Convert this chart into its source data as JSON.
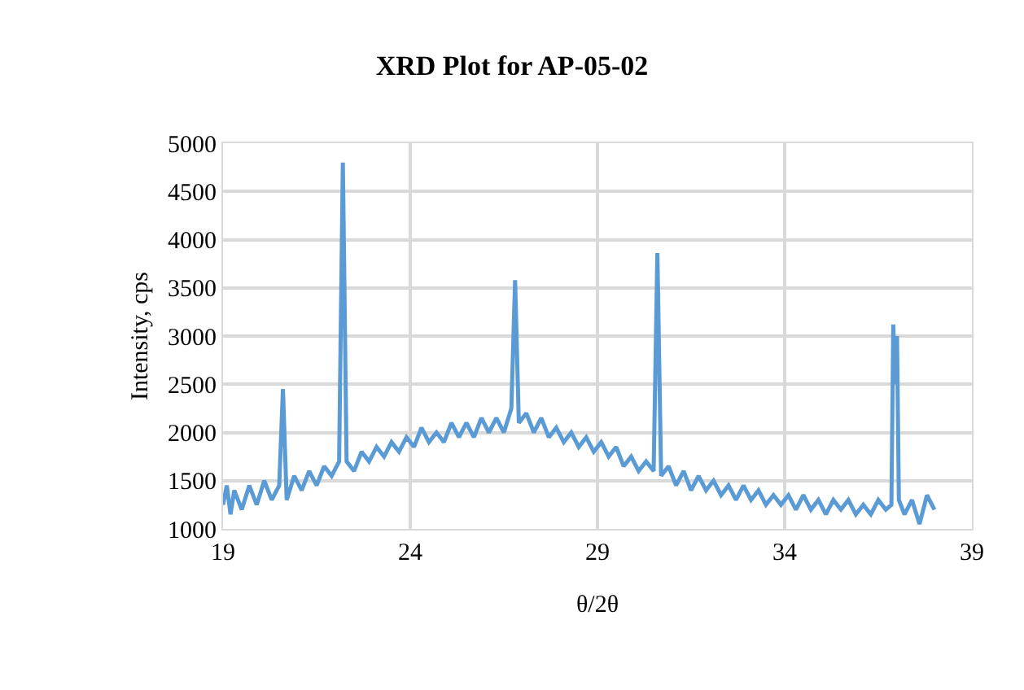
{
  "chart_data": {
    "type": "line",
    "title": "XRD Plot for AP-05-02",
    "xlabel": "θ/2θ",
    "ylabel": "Intensity, cps",
    "x": [
      19.0,
      19.1,
      19.2,
      19.3,
      19.5,
      19.7,
      19.9,
      20.1,
      20.3,
      20.5,
      20.6,
      20.7,
      20.9,
      21.1,
      21.3,
      21.5,
      21.7,
      21.9,
      22.1,
      22.2,
      22.3,
      22.5,
      22.7,
      22.9,
      23.1,
      23.3,
      23.5,
      23.7,
      23.9,
      24.1,
      24.3,
      24.5,
      24.7,
      24.9,
      25.1,
      25.3,
      25.5,
      25.7,
      25.9,
      26.1,
      26.3,
      26.5,
      26.7,
      26.8,
      26.9,
      27.1,
      27.3,
      27.5,
      27.7,
      27.9,
      28.1,
      28.3,
      28.5,
      28.7,
      28.9,
      29.1,
      29.3,
      29.5,
      29.7,
      29.9,
      30.1,
      30.3,
      30.5,
      30.6,
      30.7,
      30.9,
      31.1,
      31.3,
      31.5,
      31.7,
      31.9,
      32.1,
      32.3,
      32.5,
      32.7,
      32.9,
      33.1,
      33.3,
      33.5,
      33.7,
      33.9,
      34.1,
      34.3,
      34.5,
      34.7,
      34.9,
      35.1,
      35.3,
      35.5,
      35.7,
      35.9,
      36.1,
      36.3,
      36.5,
      36.7,
      36.85,
      36.9,
      36.95,
      37.0,
      37.05,
      37.2,
      37.4,
      37.6,
      37.8,
      38.0
    ],
    "series": [
      {
        "color": "#5b9bd5",
        "values": [
          1250,
          1450,
          1150,
          1400,
          1200,
          1450,
          1250,
          1500,
          1300,
          1450,
          2450,
          1300,
          1550,
          1400,
          1600,
          1450,
          1650,
          1550,
          1700,
          4800,
          1700,
          1600,
          1800,
          1700,
          1850,
          1750,
          1900,
          1800,
          1950,
          1850,
          2050,
          1900,
          2000,
          1900,
          2100,
          1950,
          2100,
          1950,
          2150,
          2000,
          2150,
          2000,
          2250,
          3580,
          2100,
          2200,
          2000,
          2150,
          1950,
          2050,
          1900,
          2000,
          1850,
          1950,
          1800,
          1900,
          1750,
          1850,
          1650,
          1750,
          1600,
          1700,
          1600,
          3860,
          1550,
          1650,
          1450,
          1600,
          1400,
          1550,
          1400,
          1500,
          1350,
          1450,
          1300,
          1450,
          1300,
          1400,
          1250,
          1350,
          1250,
          1350,
          1200,
          1350,
          1200,
          1300,
          1150,
          1300,
          1200,
          1300,
          1150,
          1250,
          1150,
          1300,
          1200,
          1250,
          3120,
          2500,
          3000,
          1300,
          1150,
          1300,
          1050,
          1350,
          1200
        ]
      }
    ],
    "xlim": [
      19,
      39
    ],
    "xticks": [
      19,
      24,
      29,
      34,
      39
    ],
    "ylim": [
      1000,
      5000
    ],
    "yticks": [
      1000,
      1500,
      2000,
      2500,
      3000,
      3500,
      4000,
      4500,
      5000
    ],
    "grid": true,
    "marker": "none",
    "line_style": "solid"
  }
}
